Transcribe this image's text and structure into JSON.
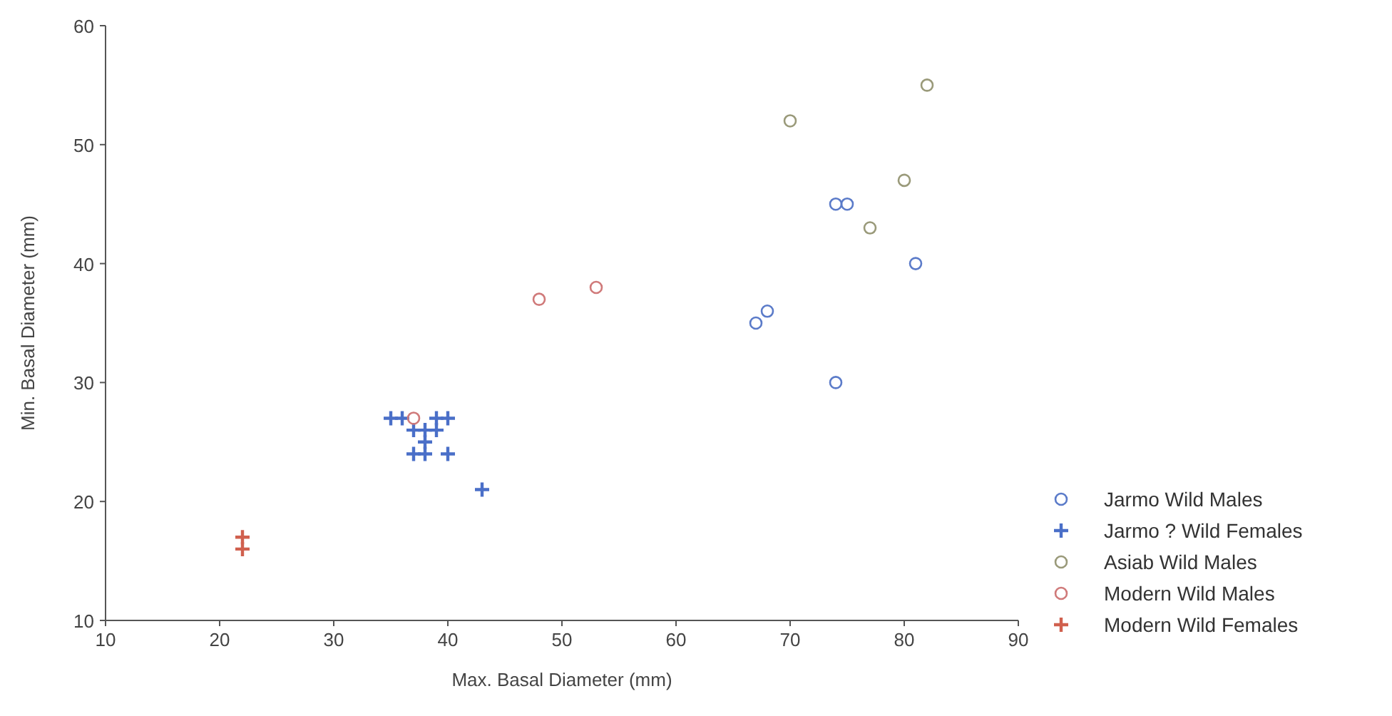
{
  "chart_data": {
    "type": "scatter",
    "xlabel": "Max. Basal Diameter (mm)",
    "ylabel": "Min. Basal Diameter (mm)",
    "xlim": [
      10,
      90
    ],
    "ylim": [
      10,
      60
    ],
    "xticks": [
      10,
      20,
      30,
      40,
      50,
      60,
      70,
      80,
      90
    ],
    "yticks": [
      10,
      20,
      30,
      40,
      50,
      60
    ],
    "legend": "right",
    "grid": false,
    "series": [
      {
        "name": "Jarmo Wild Males",
        "color": "#5b7bc9",
        "marker": "circle",
        "x": [
          67,
          68,
          74,
          75,
          74,
          81
        ],
        "values": [
          35,
          36,
          45,
          45,
          30,
          40
        ]
      },
      {
        "name": "Jarmo ? Wild Females",
        "color": "#4a6fc8",
        "marker": "cross",
        "x": [
          35,
          36,
          39,
          40,
          37,
          38,
          39,
          38,
          37,
          38,
          40,
          43
        ],
        "values": [
          27,
          27,
          27,
          27,
          26,
          26,
          26,
          25,
          24,
          24,
          24,
          21
        ]
      },
      {
        "name": "Asiab Wild Males",
        "color": "#9a9a7a",
        "marker": "circle",
        "x": [
          70,
          82,
          80,
          77
        ],
        "values": [
          52,
          55,
          47,
          43
        ]
      },
      {
        "name": "Modern Wild Males",
        "color": "#d07a7a",
        "marker": "circle",
        "x": [
          48,
          53,
          37
        ],
        "values": [
          37,
          38,
          27
        ]
      },
      {
        "name": "Modern Wild Females",
        "color": "#d0604e",
        "marker": "cross",
        "x": [
          22,
          22
        ],
        "values": [
          17,
          16
        ]
      }
    ]
  }
}
